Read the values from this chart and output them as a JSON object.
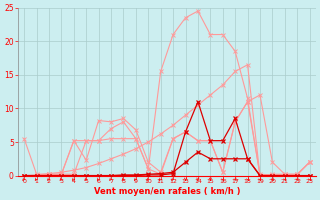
{
  "x": [
    0,
    1,
    2,
    3,
    4,
    5,
    6,
    7,
    8,
    9,
    10,
    11,
    12,
    13,
    14,
    15,
    16,
    17,
    18,
    19,
    20,
    21,
    22,
    23
  ],
  "line_gust_upper": [
    0.0,
    0.0,
    0.2,
    0.2,
    5.2,
    5.2,
    5.2,
    5.5,
    5.5,
    5.5,
    1.0,
    15.5,
    21.0,
    23.5,
    24.5,
    21.0,
    21.0,
    18.5,
    11.5,
    0.0,
    0.2,
    0.2,
    0.2,
    2.0
  ],
  "line_scattered": [
    5.5,
    0.2,
    0.2,
    0.2,
    5.2,
    2.3,
    8.2,
    8.0,
    8.5,
    6.8,
    2.0,
    0.5,
    5.5,
    6.5,
    5.2,
    5.2,
    0.5,
    8.0,
    11.0,
    0.2,
    0.1,
    0.1,
    0.1,
    2.0
  ],
  "line_linear": [
    0.0,
    0.1,
    0.3,
    0.5,
    0.8,
    1.2,
    1.8,
    2.5,
    3.2,
    4.0,
    5.0,
    6.2,
    7.5,
    9.0,
    10.5,
    12.0,
    13.5,
    15.5,
    16.5,
    0.0,
    0.0,
    0.0,
    0.0,
    0.0
  ],
  "line_lower_env": [
    0.0,
    0.0,
    0.0,
    0.2,
    0.2,
    5.2,
    5.2,
    7.0,
    8.0,
    5.5,
    1.0,
    0.2,
    5.5,
    6.5,
    5.2,
    5.2,
    0.5,
    8.0,
    11.0,
    12.0,
    2.0,
    0.2,
    0.2,
    2.0
  ],
  "line_wind_mean": [
    0.0,
    0.0,
    0.0,
    0.0,
    0.0,
    0.0,
    0.0,
    0.0,
    0.1,
    0.1,
    0.2,
    0.3,
    0.5,
    2.0,
    3.5,
    2.5,
    2.5,
    2.5,
    2.5,
    0.0,
    0.0,
    0.0,
    0.0,
    0.0
  ],
  "line_wind_gust": [
    0.0,
    0.0,
    0.0,
    0.0,
    0.0,
    0.0,
    0.0,
    0.0,
    0.0,
    0.0,
    0.1,
    0.1,
    0.3,
    6.5,
    11.0,
    5.2,
    5.2,
    8.5,
    2.5,
    0.0,
    0.0,
    0.0,
    0.0,
    0.0
  ],
  "background": "#cceef0",
  "grid_color": "#aacccc",
  "xlabel": "Vent moyen/en rafales ( km/h )",
  "ylim": [
    0,
    25
  ],
  "xlim": [
    0,
    23
  ],
  "yticks": [
    0,
    5,
    10,
    15,
    20,
    25
  ]
}
